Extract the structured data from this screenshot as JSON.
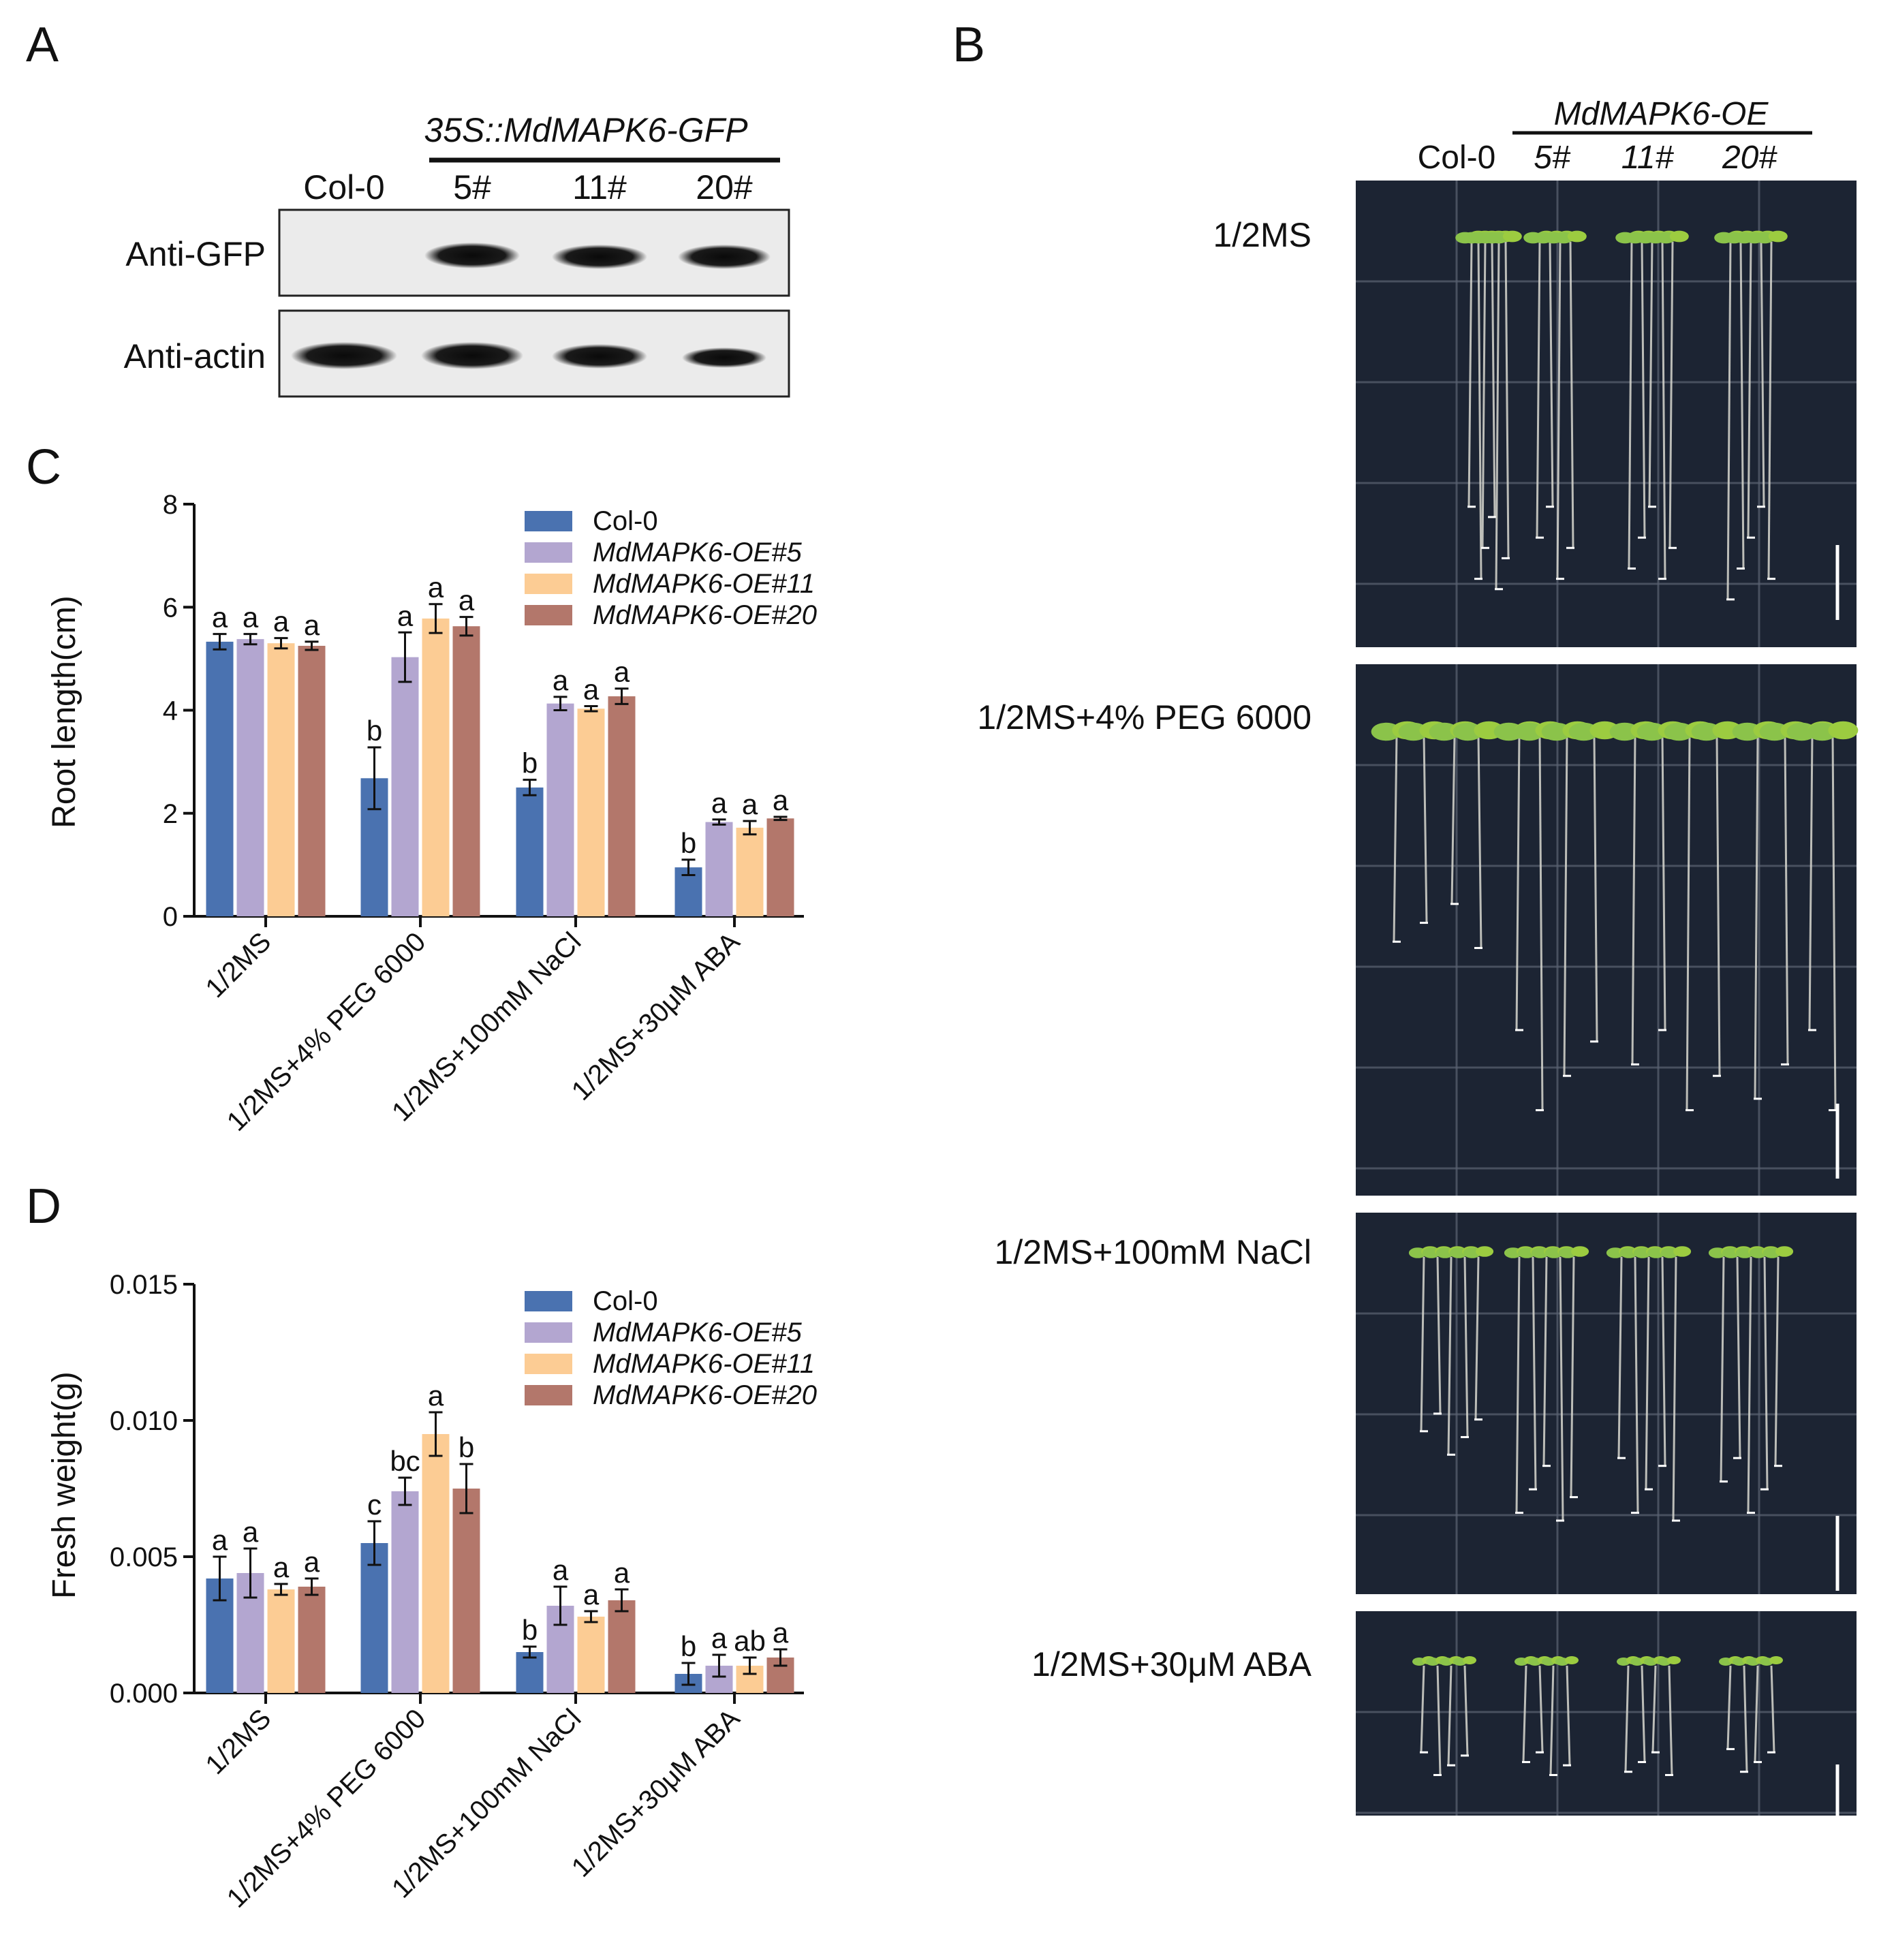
{
  "panels": {
    "A": "A",
    "B": "B",
    "C": "C",
    "D": "D"
  },
  "western_blot": {
    "construct_label": "35S::MdMAPK6-GFP",
    "lanes": [
      "Col-0",
      "5#",
      "11#",
      "20#"
    ],
    "rows": [
      "Anti-GFP",
      "Anti-actin"
    ]
  },
  "seedling_photos": {
    "group_label": "MdMAPK6-OE",
    "columns": [
      "Col-0",
      "5#",
      "11#",
      "20#"
    ],
    "conditions": [
      "1/2MS",
      "1/2MS+4% PEG 6000",
      "1/2MS+100mM NaCl",
      "1/2MS+30μM ABA"
    ]
  },
  "chart_data": [
    {
      "type": "bar",
      "panel": "C",
      "ylabel": "Root length(cm)",
      "xlabel": "",
      "ylim": [
        0,
        8
      ],
      "yticks": [
        "0",
        "2",
        "4",
        "6",
        "8"
      ],
      "categories": [
        "1/2MS",
        "1/2MS+4% PEG 6000",
        "1/2MS+100mM NaCl",
        "1/2MS+30μM ABA"
      ],
      "series": [
        {
          "name": "Col-0",
          "color": "#4a72b0",
          "values": [
            5.33,
            2.68,
            2.5,
            0.95
          ],
          "errors": [
            0.15,
            0.6,
            0.15,
            0.15
          ],
          "letters": [
            "a",
            "b",
            "b",
            "b"
          ]
        },
        {
          "name": "MdMAPK6-OE#5",
          "color": "#b3a6d0",
          "values": [
            5.38,
            5.03,
            4.13,
            1.83
          ],
          "errors": [
            0.1,
            0.48,
            0.13,
            0.05
          ],
          "letters": [
            "a",
            "a",
            "a",
            "a"
          ]
        },
        {
          "name": "MdMAPK6-OE#11",
          "color": "#fccc94",
          "values": [
            5.3,
            5.78,
            4.03,
            1.72
          ],
          "errors": [
            0.1,
            0.28,
            0.05,
            0.13
          ],
          "letters": [
            "a",
            "a",
            "a",
            "a"
          ]
        },
        {
          "name": "MdMAPK6-OE#20",
          "color": "#b3776b",
          "values": [
            5.25,
            5.63,
            4.27,
            1.9
          ],
          "errors": [
            0.08,
            0.18,
            0.15,
            0.03
          ],
          "letters": [
            "a",
            "a",
            "a",
            "a"
          ]
        }
      ]
    },
    {
      "type": "bar",
      "panel": "D",
      "ylabel": "Fresh weight(g)",
      "xlabel": "",
      "ylim": [
        0,
        0.015
      ],
      "yticks": [
        "0.000",
        "0.005",
        "0.010",
        "0.015"
      ],
      "categories": [
        "1/2MS",
        "1/2MS+4% PEG 6000",
        "1/2MS+100mM NaCl",
        "1/2MS+30μM ABA"
      ],
      "series": [
        {
          "name": "Col-0",
          "color": "#4a72b0",
          "values": [
            0.0042,
            0.0055,
            0.0015,
            0.0007
          ],
          "errors": [
            0.0008,
            0.0008,
            0.0002,
            0.0004
          ],
          "letters": [
            "a",
            "c",
            "b",
            "b"
          ]
        },
        {
          "name": "MdMAPK6-OE#5",
          "color": "#b3a6d0",
          "values": [
            0.0044,
            0.0074,
            0.0032,
            0.001
          ],
          "errors": [
            0.0009,
            0.0005,
            0.0007,
            0.0004
          ],
          "letters": [
            "a",
            "bc",
            "a",
            "a"
          ]
        },
        {
          "name": "MdMAPK6-OE#11",
          "color": "#fccc94",
          "values": [
            0.0038,
            0.0095,
            0.0028,
            0.001
          ],
          "errors": [
            0.0002,
            0.0008,
            0.0002,
            0.0003
          ],
          "letters": [
            "a",
            "a",
            "a",
            "ab"
          ]
        },
        {
          "name": "MdMAPK6-OE#20",
          "color": "#b3776b",
          "values": [
            0.0039,
            0.0075,
            0.0034,
            0.0013
          ],
          "errors": [
            0.0003,
            0.0009,
            0.0004,
            0.0003
          ],
          "letters": [
            "a",
            "b",
            "a",
            "a"
          ]
        }
      ]
    }
  ]
}
